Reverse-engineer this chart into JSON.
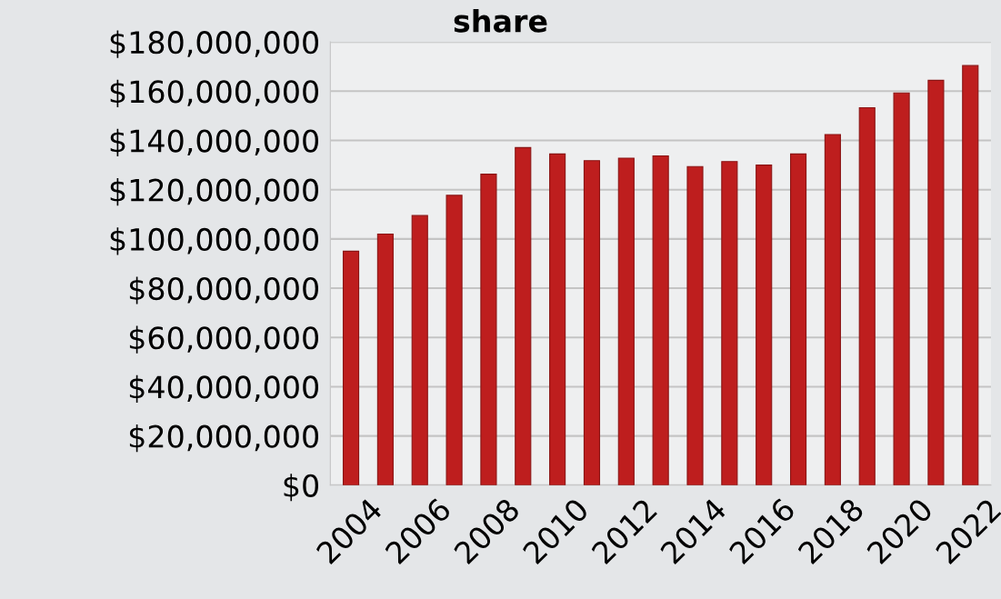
{
  "chart_data": {
    "type": "bar",
    "title": "share",
    "categories": [
      "2004",
      null,
      "2006",
      null,
      "2008",
      null,
      "2010",
      null,
      "2012",
      null,
      "2014",
      null,
      "2016",
      null,
      "2018",
      null,
      "2020",
      null,
      "2022"
    ],
    "values": [
      95000000,
      102000000,
      109500000,
      117700000,
      126300000,
      137100000,
      134500000,
      131800000,
      132800000,
      133700000,
      129400000,
      131400000,
      130000000,
      134500000,
      142400000,
      153300000,
      159300000,
      164400000,
      170400000
    ],
    "color": "#be1e1e",
    "ylim": [
      0,
      180000000
    ],
    "yticks": [
      {
        "value": 0,
        "label": "$0"
      },
      {
        "value": 20000000,
        "label": "$20,000,000"
      },
      {
        "value": 40000000,
        "label": "$40,000,000"
      },
      {
        "value": 60000000,
        "label": "$60,000,000"
      },
      {
        "value": 80000000,
        "label": "$80,000,000"
      },
      {
        "value": 100000000,
        "label": "$100,000,000"
      },
      {
        "value": 120000000,
        "label": "$120,000,000"
      },
      {
        "value": 140000000,
        "label": "$140,000,000"
      },
      {
        "value": 160000000,
        "label": "$160,000,000"
      },
      {
        "value": 180000000,
        "label": "$180,000,000"
      }
    ],
    "grid": "y"
  }
}
